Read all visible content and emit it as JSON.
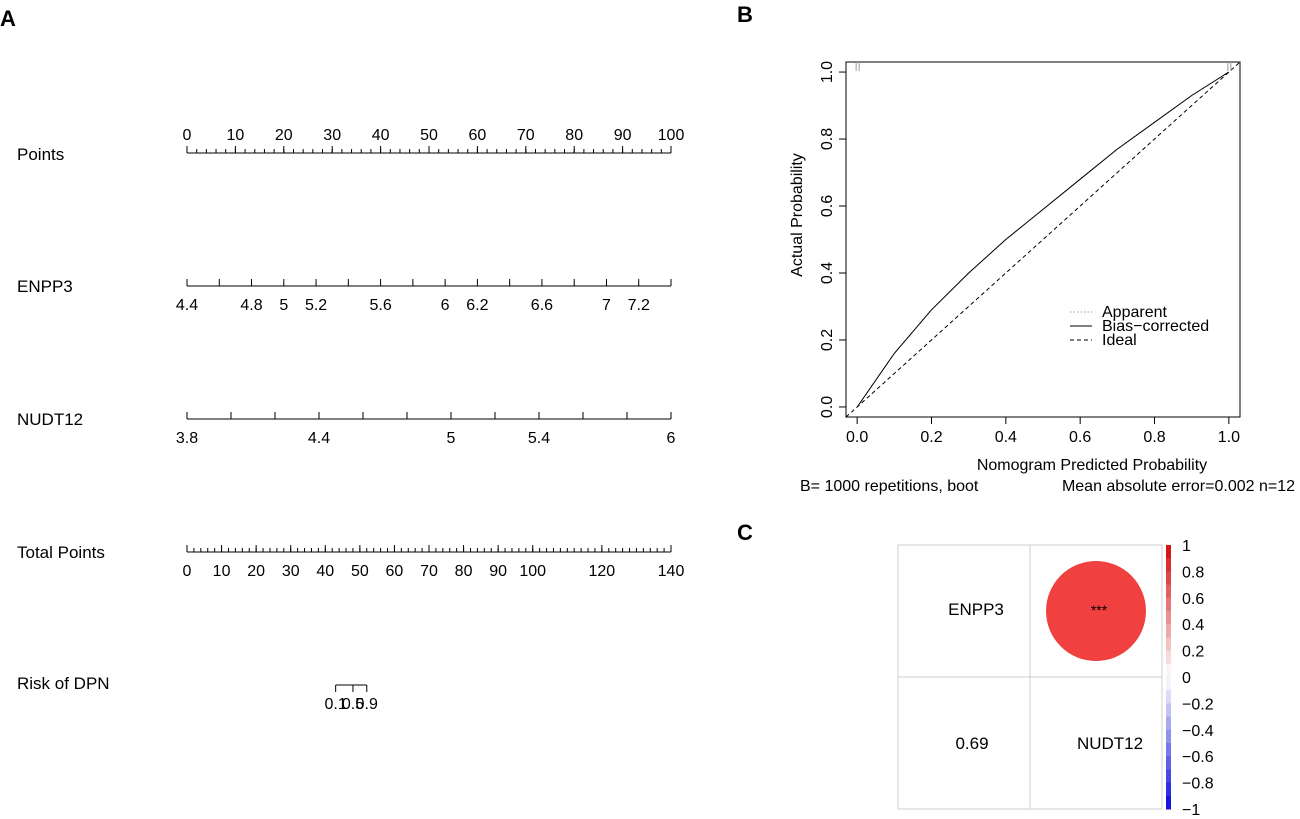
{
  "panels": {
    "a": "A",
    "b": "B",
    "c": "C"
  },
  "chart_data": [
    {
      "type": "nomogram",
      "rows": [
        {
          "label": "Points",
          "min": 0,
          "max": 100,
          "ticks": [
            "0",
            "10",
            "20",
            "30",
            "40",
            "50",
            "60",
            "70",
            "80",
            "90",
            "100"
          ],
          "minor_step": 2,
          "tick_labels_above": true
        },
        {
          "label": "ENPP3",
          "min": 4.4,
          "max": 7.4,
          "ticks": [
            "4.4",
            "4.8",
            "5",
            "5.2",
            "5.6",
            "6",
            "6.2",
            "6.6",
            "7",
            "7.2"
          ],
          "minor": [
            4.6,
            5.4,
            5.8,
            6.4,
            6.8,
            7.4
          ]
        },
        {
          "label": "NUDT12",
          "min": 3.8,
          "max": 6,
          "ticks": [
            "3.8",
            "4.4",
            "5",
            "5.4",
            "6"
          ],
          "minor": [
            4.0,
            4.2,
            4.6,
            4.8,
            5.2,
            5.6,
            5.8
          ]
        },
        {
          "label": "Total Points",
          "min": 0,
          "max": 140,
          "ticks": [
            "0",
            "10",
            "20",
            "30",
            "40",
            "50",
            "60",
            "70",
            "80",
            "90",
            "100",
            "120",
            "140"
          ],
          "minor_step": 2
        },
        {
          "label": "Risk of DPN",
          "ticks": [
            "0.1",
            "0.5",
            "0.9"
          ],
          "total_points": [
            43,
            48,
            52
          ]
        }
      ],
      "points_per_total": 0.7143
    },
    {
      "type": "line",
      "xlabel": "Nomogram Predicted Probability",
      "ylabel": "Actual Probability",
      "xlim": [
        -0.03,
        1.03
      ],
      "ylim": [
        -0.03,
        1.03
      ],
      "xticks": [
        "0.0",
        "0.2",
        "0.4",
        "0.6",
        "0.8",
        "1.0"
      ],
      "yticks": [
        "0.0",
        "0.2",
        "0.4",
        "0.6",
        "0.8",
        "1.0"
      ],
      "series": [
        {
          "name": "Apparent",
          "style": "dotted",
          "x": [
            0,
            0.1,
            0.2,
            0.3,
            0.4,
            0.5,
            0.6,
            0.7,
            0.8,
            0.9,
            1.0
          ],
          "y": [
            0,
            0.16,
            0.29,
            0.4,
            0.5,
            0.59,
            0.68,
            0.77,
            0.85,
            0.93,
            1.0
          ]
        },
        {
          "name": "Bias−corrected",
          "style": "solid",
          "x": [
            0,
            0.1,
            0.2,
            0.3,
            0.4,
            0.5,
            0.6,
            0.7,
            0.8,
            0.9,
            1.0
          ],
          "y": [
            0,
            0.16,
            0.29,
            0.4,
            0.5,
            0.59,
            0.68,
            0.77,
            0.85,
            0.93,
            1.0
          ]
        },
        {
          "name": "Ideal",
          "style": "dashed",
          "x": [
            -0.03,
            1.03
          ],
          "y": [
            -0.03,
            1.03
          ]
        }
      ],
      "rug_x": [
        0.0,
        0.0,
        1.0,
        1.0
      ],
      "legend": "right",
      "footnote_left": "B= 1000 repetitions, boot",
      "footnote_right": "Mean absolute error=0.002 n=12"
    },
    {
      "type": "heatmap",
      "variables": [
        "ENPP3",
        "NUDT12"
      ],
      "upper": {
        "value": 1.0,
        "label": "***",
        "color": "#f04040"
      },
      "lower": {
        "value": 0.69,
        "label": "0.69",
        "color": "#3a7fc4"
      },
      "label_color": "#e8101a",
      "colorbar_ticks": [
        "1",
        "0.8",
        "0.6",
        "0.4",
        "0.2",
        "0",
        "−0.2",
        "−0.4",
        "−0.6",
        "−0.8",
        "−1"
      ],
      "colorbar_range": [
        -1,
        1
      ]
    }
  ]
}
